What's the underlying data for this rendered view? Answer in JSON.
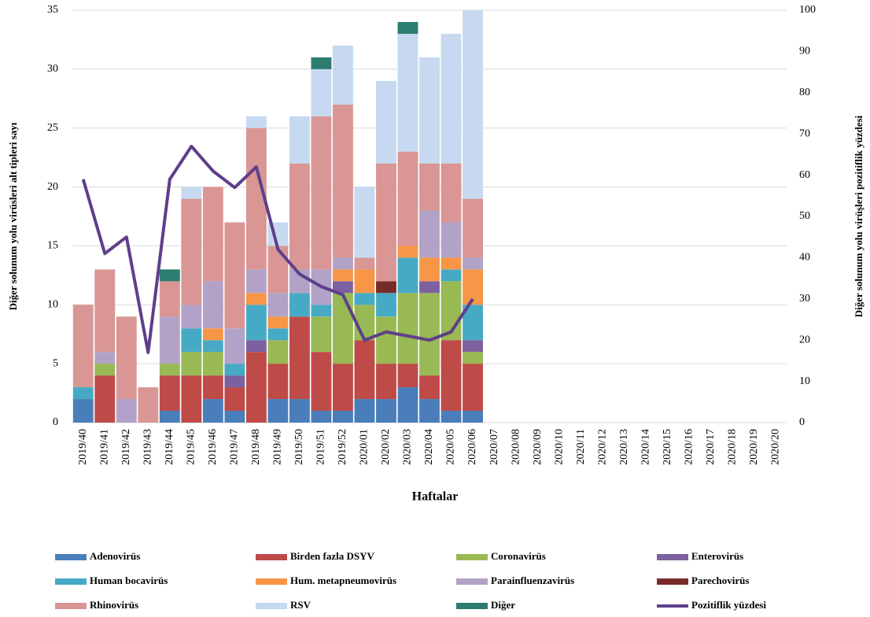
{
  "chart_data": {
    "type": "bar",
    "x_label": "Haftalar",
    "y_label": "Diğer solunum yolu virüsleri alt tipleri sayı",
    "y2_label": "Diğer solunum yolu virüşleri pozitiflik yüzdesi",
    "categories": [
      "2019/40",
      "2019/41",
      "2019/42",
      "2019/43",
      "2019/44",
      "2019/45",
      "2019/46",
      "2019/47",
      "2019/48",
      "2019/49",
      "2019/50",
      "2019/51",
      "2019/52",
      "2020/01",
      "2020/02",
      "2020/03",
      "2020/04",
      "2020/05",
      "2020/06",
      "2020/07",
      "2020/08",
      "2020/09",
      "2020/10",
      "2020/11",
      "2020/12",
      "2020/13",
      "2020/14",
      "2020/15",
      "2020/16",
      "2020/17",
      "2020/18",
      "2020/19",
      "2020/20"
    ],
    "ylim": [
      0,
      35
    ],
    "yticks": [
      0,
      5,
      10,
      15,
      20,
      25,
      30,
      35
    ],
    "y2lim": [
      0,
      100
    ],
    "y2ticks": [
      0,
      10,
      20,
      30,
      40,
      50,
      60,
      70,
      80,
      90,
      100
    ],
    "grid": true,
    "stacked": true,
    "legend": "bottom",
    "series": [
      {
        "name": "Adenovirüs",
        "color": "#4a7ebb",
        "values": [
          2,
          0,
          0,
          0,
          1,
          0,
          2,
          1,
          0,
          2,
          2,
          1,
          1,
          2,
          2,
          3,
          2,
          1,
          1,
          null,
          null,
          null,
          null,
          null,
          null,
          null,
          null,
          null,
          null,
          null,
          null,
          null,
          null
        ]
      },
      {
        "name": "Birden fazla DSYV",
        "color": "#be4b48",
        "values": [
          0,
          4,
          0,
          0,
          3,
          4,
          2,
          2,
          6,
          3,
          7,
          5,
          4,
          5,
          3,
          2,
          2,
          6,
          4,
          null,
          null,
          null,
          null,
          null,
          null,
          null,
          null,
          null,
          null,
          null,
          null,
          null,
          null
        ]
      },
      {
        "name": "Coronavirüs",
        "color": "#98b954",
        "values": [
          0,
          1,
          0,
          0,
          1,
          2,
          2,
          0,
          0,
          2,
          0,
          3,
          6,
          3,
          4,
          6,
          7,
          5,
          1,
          null,
          null,
          null,
          null,
          null,
          null,
          null,
          null,
          null,
          null,
          null,
          null,
          null,
          null
        ]
      },
      {
        "name": "Enterovirüs",
        "color": "#7d60a0",
        "values": [
          0,
          0,
          0,
          0,
          0,
          0,
          0,
          1,
          1,
          0,
          0,
          0,
          1,
          0,
          0,
          0,
          1,
          0,
          1,
          null,
          null,
          null,
          null,
          null,
          null,
          null,
          null,
          null,
          null,
          null,
          null,
          null,
          null
        ]
      },
      {
        "name": "Human bocavirüs",
        "color": "#46aac5",
        "values": [
          1,
          0,
          0,
          0,
          0,
          2,
          1,
          1,
          3,
          1,
          2,
          1,
          0,
          1,
          2,
          3,
          0,
          1,
          3,
          null,
          null,
          null,
          null,
          null,
          null,
          null,
          null,
          null,
          null,
          null,
          null,
          null,
          null
        ]
      },
      {
        "name": "Hum. metapneumovirüs",
        "color": "#f79646",
        "values": [
          0,
          0,
          0,
          0,
          0,
          0,
          1,
          0,
          1,
          1,
          0,
          0,
          1,
          2,
          0,
          1,
          2,
          1,
          3,
          null,
          null,
          null,
          null,
          null,
          null,
          null,
          null,
          null,
          null,
          null,
          null,
          null,
          null
        ]
      },
      {
        "name": "Parainfluenzavirüs",
        "color": "#b3a2c7",
        "values": [
          0,
          1,
          2,
          0,
          4,
          2,
          4,
          3,
          2,
          2,
          2,
          3,
          1,
          0,
          0,
          0,
          4,
          3,
          1,
          null,
          null,
          null,
          null,
          null,
          null,
          null,
          null,
          null,
          null,
          null,
          null,
          null,
          null
        ]
      },
      {
        "name": "Parechovirüs",
        "color": "#772c2a",
        "values": [
          0,
          0,
          0,
          0,
          0,
          0,
          0,
          0,
          0,
          0,
          0,
          0,
          0,
          0,
          1,
          0,
          0,
          0,
          0,
          null,
          null,
          null,
          null,
          null,
          null,
          null,
          null,
          null,
          null,
          null,
          null,
          null,
          null
        ]
      },
      {
        "name": "Rhinovirüs",
        "color": "#d99694",
        "values": [
          7,
          7,
          7,
          3,
          3,
          9,
          8,
          9,
          12,
          4,
          9,
          13,
          13,
          1,
          10,
          8,
          4,
          5,
          5,
          null,
          null,
          null,
          null,
          null,
          null,
          null,
          null,
          null,
          null,
          null,
          null,
          null,
          null
        ]
      },
      {
        "name": "RSV",
        "color": "#c6d9f1",
        "values": [
          0,
          0,
          0,
          0,
          0,
          1,
          0,
          0,
          1,
          2,
          4,
          4,
          5,
          6,
          7,
          10,
          9,
          11,
          16,
          null,
          null,
          null,
          null,
          null,
          null,
          null,
          null,
          null,
          null,
          null,
          null,
          null,
          null
        ]
      },
      {
        "name": "Diğer",
        "color": "#2c7c6f",
        "values": [
          0,
          0,
          0,
          0,
          1,
          0,
          0,
          0,
          0,
          0,
          0,
          1,
          0,
          0,
          0,
          1,
          0,
          0,
          0,
          null,
          null,
          null,
          null,
          null,
          null,
          null,
          null,
          null,
          null,
          null,
          null,
          null,
          null
        ]
      },
      {
        "name": "Pozitiflik yüzdesi",
        "color": "#5e3f8a",
        "type": "line",
        "axis": "y2",
        "values": [
          59,
          41,
          45,
          17,
          59,
          67,
          61,
          57,
          62,
          42,
          36,
          33,
          31,
          20,
          22,
          21,
          20,
          22,
          30,
          null,
          null,
          null,
          null,
          null,
          null,
          null,
          null,
          null,
          null,
          null,
          null,
          null,
          null
        ]
      }
    ]
  }
}
